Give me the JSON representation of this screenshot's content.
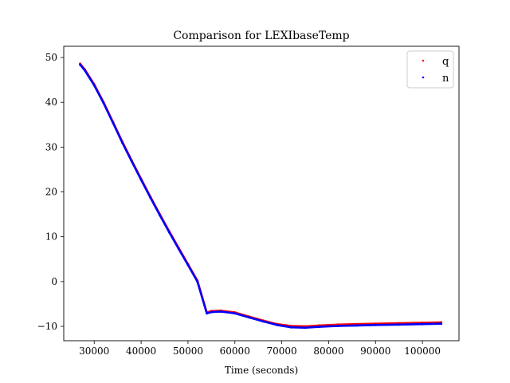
{
  "chart_data": {
    "type": "scatter",
    "title": "Comparison for LEXIbaseTemp",
    "xlabel": "Time (seconds)",
    "ylabel": "",
    "xlim": [
      23500,
      107800
    ],
    "ylim": [
      -13.2,
      52.5
    ],
    "xticks": [
      30000,
      40000,
      50000,
      60000,
      70000,
      80000,
      90000,
      100000
    ],
    "xtick_labels": [
      "30000",
      "40000",
      "50000",
      "60000",
      "70000",
      "80000",
      "90000",
      "100000"
    ],
    "yticks": [
      -10,
      0,
      10,
      20,
      30,
      40,
      50
    ],
    "ytick_labels": [
      "−10",
      "0",
      "10",
      "20",
      "30",
      "40",
      "50"
    ],
    "legend_position": "top-right",
    "series": [
      {
        "name": "q",
        "color": "#ff0000",
        "marker": "dot",
        "points": [
          [
            27000,
            48.6
          ],
          [
            28000,
            47.3
          ],
          [
            30000,
            44.0
          ],
          [
            32000,
            40.0
          ],
          [
            34000,
            35.6
          ],
          [
            36000,
            31.2
          ],
          [
            38000,
            27.0
          ],
          [
            40000,
            22.9
          ],
          [
            42000,
            18.9
          ],
          [
            44000,
            15.0
          ],
          [
            46000,
            11.2
          ],
          [
            48000,
            7.5
          ],
          [
            50000,
            3.9
          ],
          [
            52000,
            0.2
          ],
          [
            54000,
            -6.9
          ],
          [
            55000,
            -6.6
          ],
          [
            57000,
            -6.5
          ],
          [
            60000,
            -6.9
          ],
          [
            63000,
            -7.8
          ],
          [
            66000,
            -8.7
          ],
          [
            69000,
            -9.5
          ],
          [
            72000,
            -9.9
          ],
          [
            75000,
            -10.0
          ],
          [
            78000,
            -9.8
          ],
          [
            82000,
            -9.6
          ],
          [
            86000,
            -9.5
          ],
          [
            90000,
            -9.4
          ],
          [
            95000,
            -9.3
          ],
          [
            100000,
            -9.2
          ],
          [
            104000,
            -9.1
          ]
        ]
      },
      {
        "name": "n",
        "color": "#0000ff",
        "marker": "dot",
        "points": [
          [
            27000,
            48.4
          ],
          [
            28000,
            47.1
          ],
          [
            30000,
            43.8
          ],
          [
            32000,
            39.8
          ],
          [
            34000,
            35.4
          ],
          [
            36000,
            31.0
          ],
          [
            38000,
            26.8
          ],
          [
            40000,
            22.7
          ],
          [
            42000,
            18.7
          ],
          [
            44000,
            14.8
          ],
          [
            46000,
            11.0
          ],
          [
            48000,
            7.3
          ],
          [
            50000,
            3.7
          ],
          [
            52000,
            0.0
          ],
          [
            54000,
            -7.1
          ],
          [
            55000,
            -6.8
          ],
          [
            57000,
            -6.7
          ],
          [
            60000,
            -7.1
          ],
          [
            63000,
            -8.0
          ],
          [
            66000,
            -8.9
          ],
          [
            69000,
            -9.7
          ],
          [
            72000,
            -10.2
          ],
          [
            75000,
            -10.3
          ],
          [
            78000,
            -10.1
          ],
          [
            82000,
            -9.9
          ],
          [
            86000,
            -9.8
          ],
          [
            90000,
            -9.7
          ],
          [
            95000,
            -9.6
          ],
          [
            100000,
            -9.5
          ],
          [
            104000,
            -9.4
          ]
        ]
      }
    ]
  }
}
